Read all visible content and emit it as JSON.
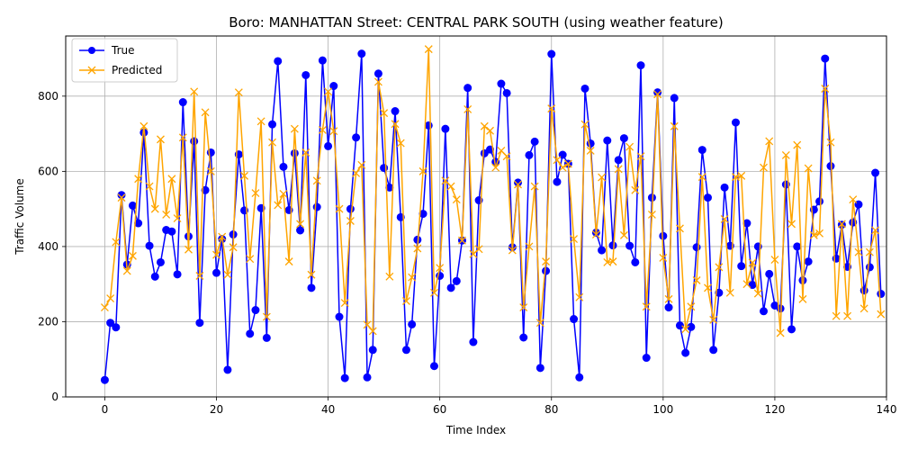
{
  "chart_data": {
    "type": "line",
    "title": "Boro: MANHATTAN Street: CENTRAL PARK SOUTH (using weather feature)",
    "xlabel": "Time Index",
    "ylabel": "Traffic Volume",
    "xlim": [
      -7,
      140
    ],
    "ylim": [
      0,
      960
    ],
    "xticks": [
      0,
      20,
      40,
      60,
      80,
      100,
      120,
      140
    ],
    "yticks": [
      0,
      200,
      400,
      600,
      800
    ],
    "grid": true,
    "legend_position": "top-left",
    "series": [
      {
        "name": "True",
        "color": "#0000ff",
        "marker": "circle",
        "values": [
          45,
          197,
          185,
          537,
          352,
          509,
          462,
          703,
          402,
          320,
          358,
          444,
          440,
          326,
          784,
          427,
          680,
          197,
          550,
          650,
          330,
          420,
          72,
          432,
          645,
          496,
          168,
          231,
          502,
          157,
          725,
          893,
          612,
          497,
          648,
          443,
          856,
          290,
          505,
          895,
          667,
          827,
          213,
          50,
          500,
          690,
          913,
          52,
          125,
          860,
          609,
          557,
          760,
          478,
          125,
          193,
          418,
          487,
          722,
          82,
          322,
          713,
          290,
          308,
          416,
          822,
          146,
          523,
          648,
          658,
          625,
          833,
          808,
          398,
          570,
          158,
          643,
          679,
          77,
          335,
          912,
          572,
          644,
          620,
          207,
          52,
          820,
          674,
          437,
          390,
          682,
          403,
          630,
          688,
          402,
          358,
          882,
          104,
          530,
          810,
          428,
          238,
          795,
          190,
          117,
          186,
          398,
          657,
          530,
          125,
          277,
          557,
          402,
          730,
          348,
          462,
          298,
          400,
          228,
          327,
          243,
          235,
          565,
          180,
          400,
          310,
          360,
          498,
          520,
          900,
          614,
          368,
          458,
          346,
          464,
          512,
          283,
          345,
          596,
          274
        ]
      },
      {
        "name": "Predicted",
        "color": "#ffa500",
        "marker": "x",
        "values": [
          238,
          262,
          412,
          530,
          335,
          375,
          580,
          720,
          560,
          500,
          685,
          485,
          580,
          475,
          690,
          392,
          812,
          322,
          757,
          600,
          378,
          426,
          325,
          398,
          810,
          588,
          367,
          542,
          733,
          213,
          677,
          510,
          540,
          360,
          713,
          460,
          650,
          325,
          575,
          710,
          812,
          707,
          500,
          250,
          468,
          595,
          617,
          192,
          175,
          838,
          755,
          320,
          726,
          675,
          255,
          318,
          395,
          600,
          925,
          277,
          343,
          575,
          560,
          525,
          416,
          765,
          380,
          393,
          720,
          708,
          610,
          655,
          640,
          390,
          565,
          238,
          400,
          560,
          197,
          360,
          767,
          630,
          610,
          620,
          420,
          265,
          725,
          655,
          432,
          584,
          358,
          360,
          606,
          430,
          665,
          550,
          640,
          240,
          485,
          805,
          370,
          260,
          720,
          448,
          180,
          240,
          310,
          585,
          290,
          205,
          345,
          473,
          277,
          585,
          588,
          300,
          357,
          275,
          610,
          680,
          365,
          170,
          643,
          460,
          670,
          260,
          608,
          430,
          435,
          820,
          677,
          215,
          460,
          215,
          525,
          385,
          235,
          385,
          443,
          220
        ]
      }
    ]
  }
}
